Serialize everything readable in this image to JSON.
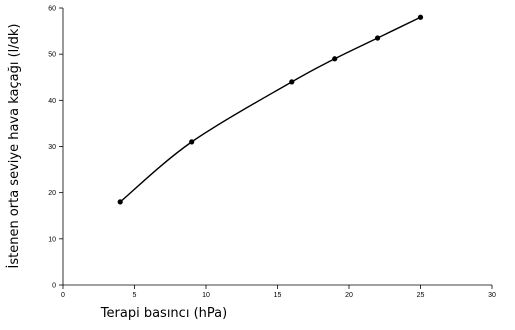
{
  "chart_data": {
    "type": "line",
    "x": [
      4,
      9,
      16,
      19,
      22,
      25
    ],
    "series": [
      {
        "values": [
          18,
          31,
          44,
          49,
          53.5,
          58
        ]
      }
    ],
    "xlabel": "Terapi basıncı (hPa)",
    "ylabel": "İstenen orta seviye hava kaçağı (l/dk)",
    "xlim": [
      0,
      30
    ],
    "ylim": [
      0,
      60
    ],
    "xticks": [
      "0",
      "5",
      "10",
      "15",
      "20",
      "25",
      "30"
    ],
    "yticks": [
      "0",
      "10",
      "20",
      "30",
      "40",
      "50",
      "60"
    ],
    "grid": false,
    "legend": "none",
    "line_color": "#000000",
    "marker": "filled-circle"
  }
}
